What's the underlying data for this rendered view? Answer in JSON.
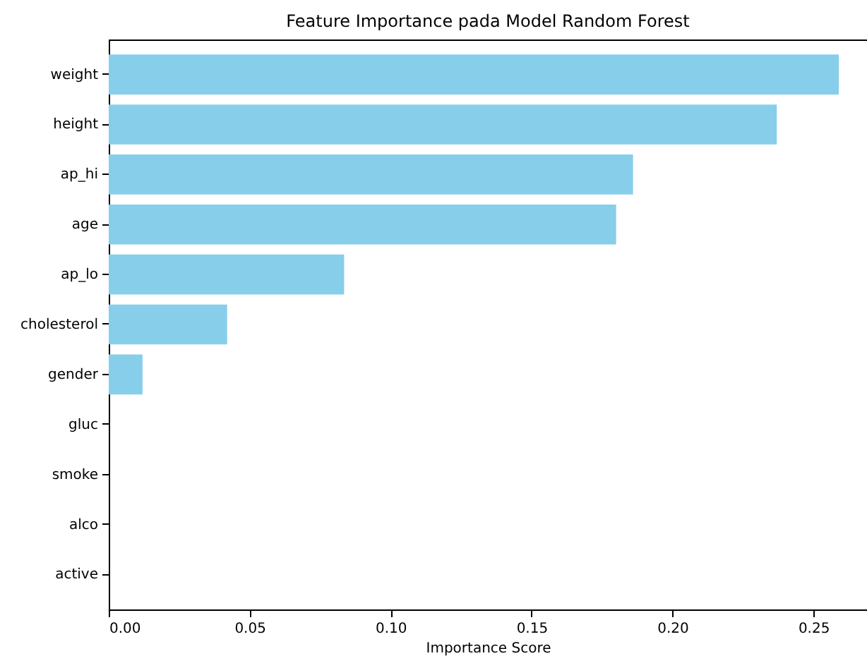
{
  "chart_data": {
    "type": "bar",
    "orientation": "horizontal",
    "title": "Feature Importance pada Model Random Forest",
    "xlabel": "Importance Score",
    "categories": [
      "weight",
      "height",
      "ap_hi",
      "age",
      "ap_lo",
      "cholesterol",
      "gender",
      "gluc",
      "smoke",
      "alco",
      "active"
    ],
    "values": [
      0.259,
      0.237,
      0.186,
      0.18,
      0.0835,
      0.042,
      0.012,
      0,
      0,
      0,
      0
    ],
    "color": "#87ceeb",
    "xlim": [
      0,
      0.269
    ],
    "xticks": [
      {
        "value": 0,
        "label": "0.00"
      },
      {
        "value": 0.05,
        "label": "0.05"
      },
      {
        "value": 0.1,
        "label": "0.10"
      },
      {
        "value": 0.15,
        "label": "0.15"
      },
      {
        "value": 0.2,
        "label": "0.20"
      },
      {
        "value": 0.25,
        "label": "0.25"
      }
    ],
    "grid": false
  }
}
